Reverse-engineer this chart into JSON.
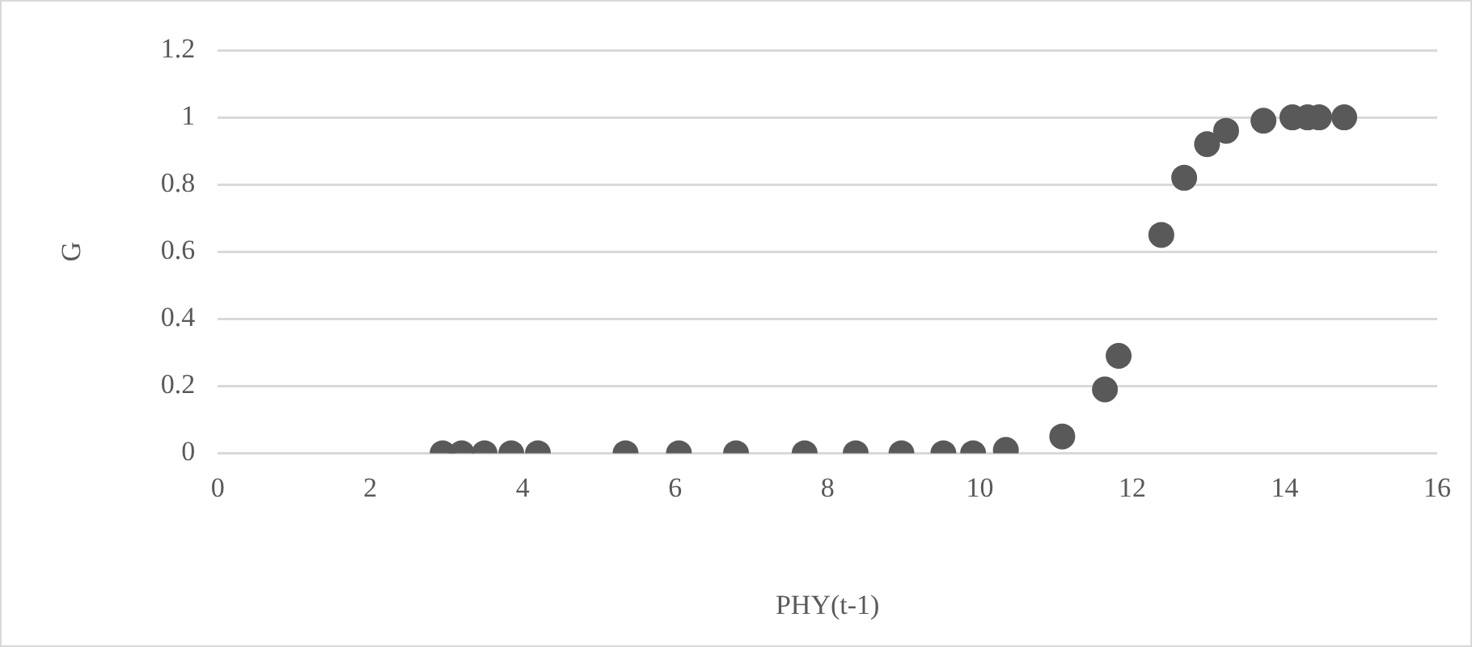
{
  "chart_data": {
    "type": "scatter",
    "xlabel": "PHY(t-1)",
    "ylabel": "G",
    "marker": "circle",
    "grid": "y",
    "legend": false,
    "x": [
      2.95,
      3.2,
      3.5,
      3.85,
      4.2,
      5.35,
      6.05,
      6.8,
      7.7,
      8.37,
      8.97,
      9.52,
      9.91,
      10.34,
      11.08,
      11.64,
      11.82,
      12.38,
      12.68,
      12.98,
      13.23,
      13.72,
      14.1,
      14.3,
      14.45,
      14.78
    ],
    "series": [
      {
        "color": "#595959",
        "values": [
          0,
          0,
          0,
          0,
          0,
          0,
          0,
          0,
          0,
          0,
          0,
          0,
          0,
          0.01,
          0.05,
          0.19,
          0.29,
          0.65,
          0.82,
          0.92,
          0.96,
          0.99,
          1,
          1,
          1,
          1
        ]
      }
    ],
    "xlim": [
      0,
      16
    ],
    "xticks": [
      0,
      2,
      4,
      6,
      8,
      10,
      12,
      14,
      16
    ],
    "ylim": [
      0,
      1.2
    ],
    "yticks": [
      0,
      0.2,
      0.4,
      0.6,
      0.8,
      1,
      1.2
    ]
  }
}
